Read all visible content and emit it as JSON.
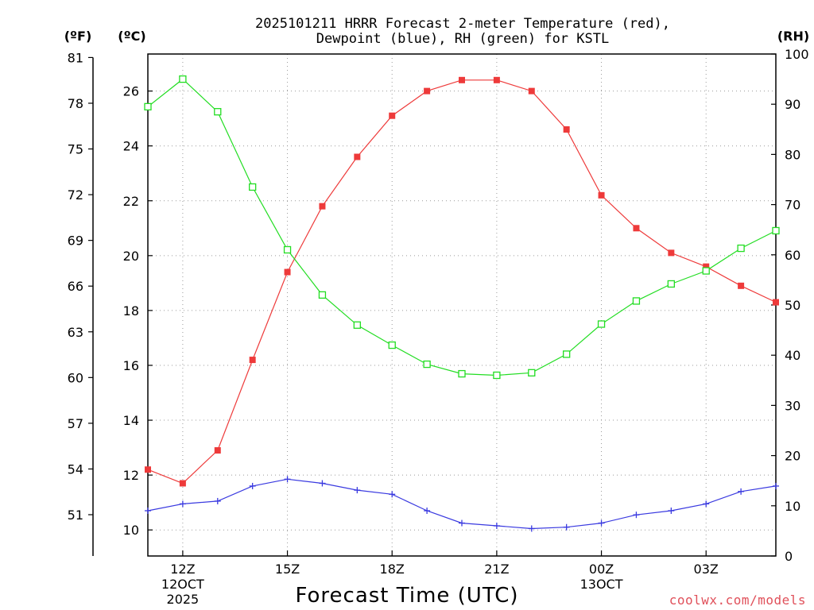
{
  "title": {
    "line1": "2025101211 HRRR Forecast 2-meter Temperature (red),",
    "line2": "Dewpoint (blue), RH (green) for KSTL"
  },
  "units": {
    "fahrenheit": "(ºF)",
    "celsius": "(ºC)",
    "rh": "(RH)"
  },
  "xlabel": "Forecast Time (UTC)",
  "credit": "coolwx.com/models",
  "chart_data": {
    "type": "line",
    "title": "2025101211 HRRR Forecast 2-meter Temperature (red), Dewpoint (blue), RH (green) for KSTL",
    "xlabel": "Forecast Time (UTC)",
    "x_hours": [
      11,
      12,
      13,
      14,
      15,
      16,
      17,
      18,
      19,
      20,
      21,
      22,
      23,
      24,
      25,
      26,
      27,
      28,
      29
    ],
    "xlim": [
      11,
      29
    ],
    "x_ticks": [
      {
        "x": 12,
        "label": "12Z",
        "sub1": "12OCT",
        "sub2": "2025"
      },
      {
        "x": 15,
        "label": "15Z",
        "sub1": "",
        "sub2": ""
      },
      {
        "x": 18,
        "label": "18Z",
        "sub1": "",
        "sub2": ""
      },
      {
        "x": 21,
        "label": "21Z",
        "sub1": "",
        "sub2": ""
      },
      {
        "x": 24,
        "label": "00Z",
        "sub1": "13OCT",
        "sub2": ""
      },
      {
        "x": 27,
        "label": "03Z",
        "sub1": "",
        "sub2": ""
      }
    ],
    "y_left_celsius": {
      "label": "(ºC)",
      "ylim": [
        9.05,
        27.35
      ],
      "ticks": [
        10,
        12,
        14,
        16,
        18,
        20,
        22,
        24,
        26
      ]
    },
    "y_left_fahrenheit": {
      "label": "(ºF)",
      "ticks": [
        51,
        54,
        57,
        60,
        63,
        66,
        69,
        72,
        75,
        78,
        81
      ]
    },
    "y_right_rh": {
      "label": "(RH)",
      "ylim": [
        0,
        100
      ],
      "ticks": [
        0,
        10,
        20,
        30,
        40,
        50,
        60,
        70,
        80,
        90,
        100
      ]
    },
    "series": [
      {
        "name": "2-meter Temperature",
        "color": "#ee3a3a",
        "axis": "celsius",
        "marker": "filled-square",
        "values": [
          12.2,
          11.7,
          12.9,
          16.2,
          19.4,
          21.8,
          23.6,
          25.1,
          26.0,
          26.4,
          26.4,
          26.0,
          24.6,
          22.2,
          21.0,
          20.1,
          19.6,
          18.9,
          18.3
        ]
      },
      {
        "name": "Dewpoint",
        "color": "#3a3ae0",
        "axis": "celsius",
        "marker": "plus",
        "values": [
          10.7,
          10.95,
          11.05,
          11.6,
          11.85,
          11.7,
          11.45,
          11.3,
          10.7,
          10.25,
          10.15,
          10.05,
          10.1,
          10.25,
          10.55,
          10.7,
          10.95,
          11.4,
          11.6
        ]
      },
      {
        "name": "RH",
        "color": "#22dd22",
        "axis": "rh",
        "marker": "open-square",
        "values": [
          89.5,
          95,
          88.5,
          73.5,
          61,
          52,
          46,
          42,
          38.2,
          36.3,
          36,
          36.5,
          40.2,
          46.2,
          50.8,
          54.2,
          56.8,
          61.3,
          64.8
        ]
      }
    ]
  }
}
